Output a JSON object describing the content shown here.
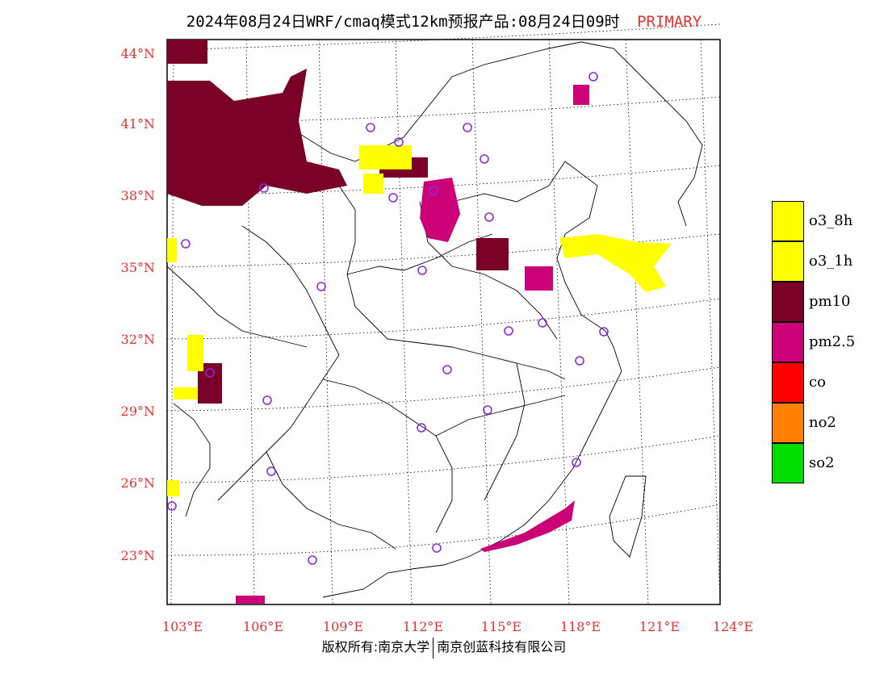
{
  "title": {
    "main": "2024年08月24日WRF/cmaq模式12km预报产品:08月24日09时",
    "tag": "PRIMARY"
  },
  "axes": {
    "lat_labels": [
      "44°N",
      "41°N",
      "38°N",
      "35°N",
      "32°N",
      "29°N",
      "26°N",
      "23°N"
    ],
    "lon_labels": [
      "103°E",
      "106°E",
      "109°E",
      "112°E",
      "115°E",
      "118°E",
      "121°E",
      "124°E"
    ]
  },
  "legend": [
    {
      "label": "o3_8h",
      "color": "#ffff00"
    },
    {
      "label": "o3_1h",
      "color": "#ffff00"
    },
    {
      "label": "pm10",
      "color": "#7a0028"
    },
    {
      "label": "pm2.5",
      "color": "#cc0077"
    },
    {
      "label": "co",
      "color": "#ff0000"
    },
    {
      "label": "no2",
      "color": "#ff7f00"
    },
    {
      "label": "so2",
      "color": "#00dd00"
    }
  ],
  "footer": {
    "left": "版权所有:南京大学",
    "right": "南京创蓝科技有限公司"
  },
  "colors": {
    "accent": "#e8322f",
    "pm10": "#7a0028",
    "pm25": "#cc0077",
    "o3": "#ffff00",
    "station": "#8a2be2"
  }
}
